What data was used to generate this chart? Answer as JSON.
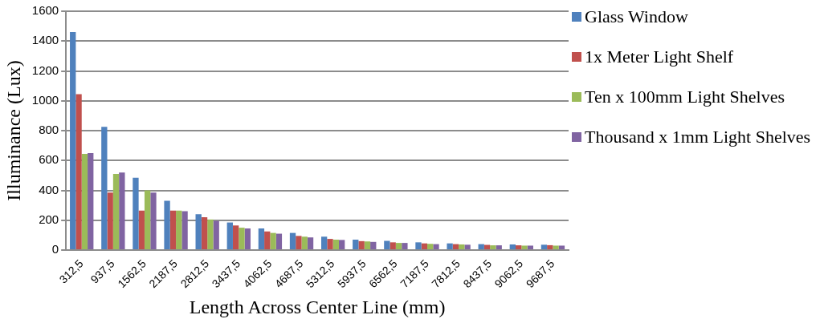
{
  "chart_data": {
    "type": "bar",
    "xlabel": "Length Across Center Line (mm)",
    "ylabel": "Illuminance (Lux)",
    "categories": [
      "312,5",
      "937,5",
      "1562,5",
      "2187,5",
      "2812,5",
      "3437,5",
      "4062,5",
      "4687,5",
      "5312,5",
      "5937,5",
      "6562,5",
      "7187,5",
      "7812,5",
      "8437,5",
      "9062,5",
      "9687,5"
    ],
    "series": [
      {
        "name": "Glass Window",
        "color": "#4f81bd",
        "values": [
          1460,
          825,
          485,
          330,
          240,
          185,
          145,
          115,
          90,
          70,
          62,
          52,
          45,
          40,
          38,
          36
        ]
      },
      {
        "name": "1x Meter Light Shelf",
        "color": "#c0504d",
        "values": [
          1045,
          385,
          265,
          265,
          220,
          165,
          125,
          95,
          75,
          60,
          52,
          45,
          40,
          35,
          32,
          33
        ]
      },
      {
        "name": "Ten x 100mm Light Shelves",
        "color": "#9bbb59",
        "values": [
          645,
          510,
          400,
          265,
          205,
          150,
          115,
          90,
          70,
          58,
          48,
          42,
          38,
          32,
          30,
          30
        ]
      },
      {
        "name": "Thousand x 1mm Light Shelves",
        "color": "#8064a2",
        "values": [
          650,
          520,
          385,
          260,
          195,
          145,
          110,
          85,
          68,
          55,
          48,
          40,
          36,
          32,
          30,
          30
        ]
      }
    ],
    "ylim": [
      0,
      1600
    ],
    "yticks": [
      0,
      200,
      400,
      600,
      800,
      1000,
      1200,
      1400,
      1600
    ],
    "grid": "y",
    "legend": "right"
  }
}
